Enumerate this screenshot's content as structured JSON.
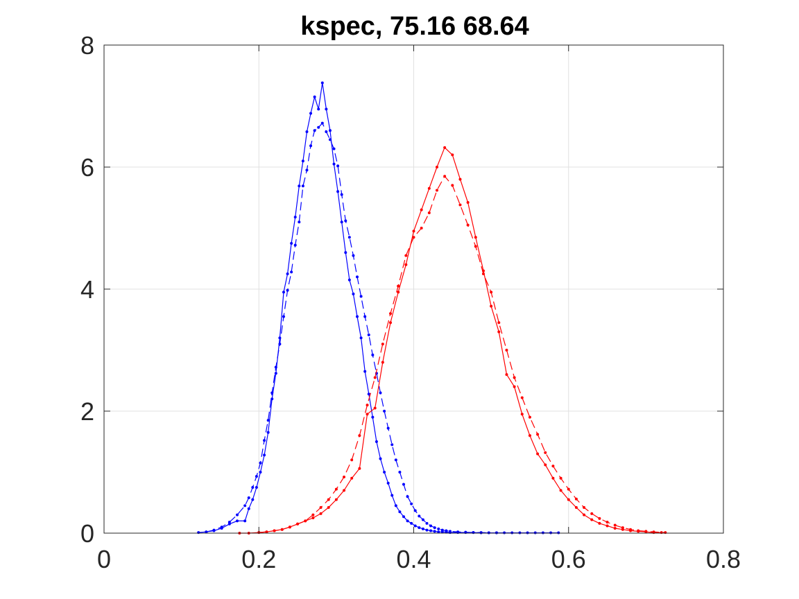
{
  "chart_data": {
    "type": "line",
    "title": "kspec, 75.16 68.64",
    "xlabel": "",
    "ylabel": "",
    "xlim": [
      0,
      0.8
    ],
    "ylim": [
      0,
      8
    ],
    "xticks": [
      0,
      0.2,
      0.4,
      0.6,
      0.8
    ],
    "xtick_labels": [
      "0",
      "0.2",
      "0.4",
      "0.6",
      "0.8"
    ],
    "yticks": [
      0,
      2,
      4,
      6,
      8
    ],
    "ytick_labels": [
      "0",
      "2",
      "4",
      "6",
      "8"
    ],
    "grid": true,
    "series": [
      {
        "color": "#0000ff",
        "dash": "solid",
        "x": [
          0.122,
          0.132,
          0.142,
          0.152,
          0.162,
          0.172,
          0.182,
          0.187,
          0.192,
          0.197,
          0.202,
          0.207,
          0.212,
          0.217,
          0.222,
          0.227,
          0.232,
          0.237,
          0.242,
          0.247,
          0.252,
          0.257,
          0.262,
          0.267,
          0.272,
          0.277,
          0.282,
          0.287,
          0.292,
          0.297,
          0.302,
          0.307,
          0.312,
          0.317,
          0.322,
          0.327,
          0.332,
          0.337,
          0.342,
          0.347,
          0.352,
          0.357,
          0.362,
          0.367,
          0.372,
          0.377,
          0.382,
          0.387,
          0.392,
          0.397,
          0.402,
          0.407,
          0.412,
          0.417,
          0.422,
          0.427,
          0.432,
          0.437,
          0.442,
          0.447,
          0.457,
          0.467,
          0.477,
          0.487,
          0.497,
          0.507,
          0.517,
          0.527,
          0.537,
          0.547,
          0.557,
          0.567,
          0.577,
          0.587
        ],
        "y": [
          0.01,
          0.02,
          0.04,
          0.08,
          0.15,
          0.2,
          0.2,
          0.4,
          0.55,
          0.75,
          1.0,
          1.28,
          1.65,
          2.2,
          2.62,
          3.2,
          3.95,
          4.25,
          4.75,
          5.18,
          5.69,
          6.1,
          6.58,
          6.88,
          7.15,
          6.95,
          7.38,
          6.95,
          6.6,
          6.05,
          5.6,
          5.1,
          4.6,
          4.15,
          3.92,
          3.55,
          3.2,
          2.65,
          2.28,
          1.9,
          1.5,
          1.22,
          1.0,
          0.82,
          0.62,
          0.45,
          0.35,
          0.27,
          0.2,
          0.16,
          0.12,
          0.09,
          0.07,
          0.05,
          0.04,
          0.03,
          0.02,
          0.02,
          0.015,
          0.01,
          0.01,
          0.01,
          0.01,
          0.005,
          0.005,
          0.005,
          0.005,
          0.005,
          0.005,
          0.005,
          0.005,
          0.005,
          0.005,
          0.005
        ]
      },
      {
        "color": "#0000ff",
        "dash": "dashed",
        "x": [
          0.132,
          0.142,
          0.152,
          0.162,
          0.172,
          0.182,
          0.187,
          0.192,
          0.197,
          0.202,
          0.207,
          0.212,
          0.217,
          0.222,
          0.227,
          0.232,
          0.237,
          0.242,
          0.247,
          0.252,
          0.257,
          0.262,
          0.267,
          0.272,
          0.277,
          0.282,
          0.287,
          0.292,
          0.297,
          0.302,
          0.307,
          0.312,
          0.317,
          0.322,
          0.327,
          0.332,
          0.337,
          0.342,
          0.347,
          0.352,
          0.357,
          0.362,
          0.367,
          0.372,
          0.377,
          0.382,
          0.387,
          0.392,
          0.397,
          0.402,
          0.407,
          0.412,
          0.417,
          0.422,
          0.427,
          0.432,
          0.437,
          0.442,
          0.447,
          0.457,
          0.467,
          0.477,
          0.487,
          0.497,
          0.507
        ],
        "y": [
          0.02,
          0.05,
          0.1,
          0.18,
          0.3,
          0.45,
          0.58,
          0.75,
          0.93,
          1.15,
          1.52,
          1.85,
          2.3,
          2.72,
          3.1,
          3.55,
          3.98,
          4.28,
          4.72,
          5.1,
          5.69,
          5.95,
          6.35,
          6.6,
          6.65,
          6.72,
          6.58,
          6.45,
          6.3,
          6.02,
          5.55,
          5.12,
          4.85,
          4.55,
          4.2,
          3.88,
          3.55,
          3.25,
          2.92,
          2.62,
          2.3,
          2.0,
          1.72,
          1.45,
          1.2,
          1.0,
          0.8,
          0.6,
          0.48,
          0.37,
          0.28,
          0.22,
          0.16,
          0.12,
          0.09,
          0.07,
          0.05,
          0.04,
          0.03,
          0.02,
          0.015,
          0.01,
          0.01,
          0.005,
          0.005
        ]
      },
      {
        "color": "#ff0000",
        "dash": "solid",
        "x": [
          0.175,
          0.187,
          0.2,
          0.21,
          0.22,
          0.23,
          0.24,
          0.25,
          0.26,
          0.27,
          0.28,
          0.29,
          0.3,
          0.31,
          0.32,
          0.33,
          0.34,
          0.35,
          0.36,
          0.37,
          0.38,
          0.39,
          0.4,
          0.41,
          0.42,
          0.43,
          0.44,
          0.45,
          0.46,
          0.47,
          0.48,
          0.49,
          0.5,
          0.51,
          0.52,
          0.53,
          0.54,
          0.55,
          0.56,
          0.57,
          0.58,
          0.59,
          0.6,
          0.61,
          0.62,
          0.63,
          0.64,
          0.65,
          0.66,
          0.67,
          0.68,
          0.69,
          0.7,
          0.71,
          0.72
        ],
        "y": [
          0.0,
          0.0,
          0.01,
          0.02,
          0.04,
          0.06,
          0.1,
          0.15,
          0.2,
          0.25,
          0.32,
          0.42,
          0.55,
          0.7,
          0.9,
          1.06,
          1.95,
          2.05,
          2.8,
          3.45,
          3.95,
          4.4,
          4.95,
          5.3,
          5.65,
          6.0,
          6.32,
          6.2,
          5.8,
          5.42,
          4.85,
          4.3,
          3.72,
          3.3,
          2.6,
          2.4,
          1.95,
          1.6,
          1.3,
          1.12,
          0.9,
          0.7,
          0.55,
          0.42,
          0.3,
          0.22,
          0.16,
          0.12,
          0.08,
          0.06,
          0.04,
          0.03,
          0.02,
          0.01,
          0.01
        ]
      },
      {
        "color": "#ff0000",
        "dash": "dashed",
        "x": [
          0.2,
          0.21,
          0.22,
          0.23,
          0.24,
          0.25,
          0.26,
          0.27,
          0.28,
          0.29,
          0.3,
          0.31,
          0.32,
          0.33,
          0.34,
          0.35,
          0.36,
          0.37,
          0.38,
          0.39,
          0.4,
          0.41,
          0.42,
          0.43,
          0.44,
          0.45,
          0.46,
          0.47,
          0.48,
          0.49,
          0.5,
          0.51,
          0.52,
          0.53,
          0.54,
          0.55,
          0.56,
          0.57,
          0.58,
          0.59,
          0.6,
          0.61,
          0.62,
          0.63,
          0.64,
          0.65,
          0.66,
          0.67,
          0.68,
          0.69,
          0.7,
          0.71,
          0.725
        ],
        "y": [
          0.01,
          0.02,
          0.04,
          0.06,
          0.1,
          0.15,
          0.2,
          0.3,
          0.42,
          0.55,
          0.72,
          0.92,
          1.2,
          1.6,
          2.1,
          2.55,
          3.1,
          3.6,
          4.05,
          4.55,
          4.85,
          5.0,
          5.25,
          5.62,
          5.85,
          5.7,
          5.38,
          5.05,
          4.7,
          4.25,
          3.95,
          3.45,
          3.0,
          2.55,
          2.22,
          1.9,
          1.62,
          1.32,
          1.1,
          0.9,
          0.72,
          0.56,
          0.42,
          0.32,
          0.24,
          0.18,
          0.13,
          0.09,
          0.06,
          0.04,
          0.03,
          0.02,
          0.01
        ]
      }
    ]
  }
}
